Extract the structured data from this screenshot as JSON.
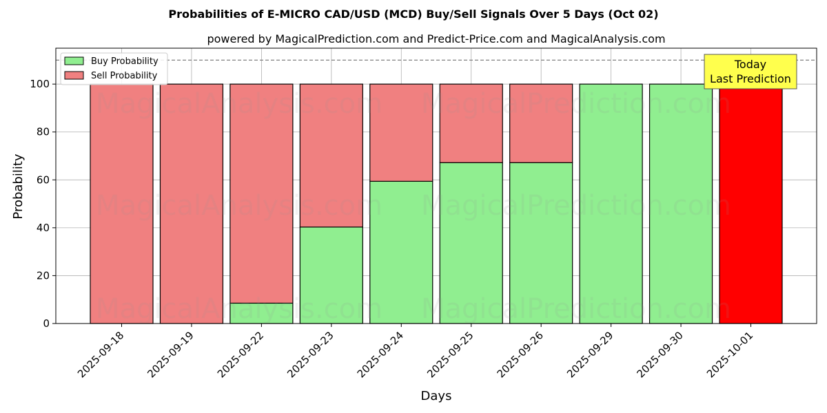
{
  "chart_data": {
    "type": "bar",
    "stacked": true,
    "title": "Probabilities of E-MICRO CAD/USD (MCD) Buy/Sell Signals Over 5 Days (Oct 02)",
    "subtitle": "powered by MagicalPrediction.com and Predict-Price.com and MagicalAnalysis.com",
    "xlabel": "Days",
    "ylabel": "Probability",
    "ylim": [
      0,
      115
    ],
    "yticks": [
      0,
      20,
      40,
      60,
      80,
      100
    ],
    "grid": true,
    "legend_position": "top-left",
    "threshold_line": 110,
    "categories": [
      "2025-09-18",
      "2025-09-19",
      "2025-09-22",
      "2025-09-23",
      "2025-09-24",
      "2025-09-25",
      "2025-09-26",
      "2025-09-29",
      "2025-09-30",
      "2025-10-01"
    ],
    "series": [
      {
        "name": "Buy Probability",
        "color": "#90ee90",
        "values": [
          0,
          0,
          8.5,
          40.3,
          59.4,
          67.2,
          67.2,
          100,
          100,
          0
        ]
      },
      {
        "name": "Sell Probability",
        "color": "#f08080",
        "values": [
          100,
          100,
          91.5,
          59.7,
          40.6,
          32.8,
          32.8,
          0,
          0,
          100
        ]
      }
    ],
    "highlight": {
      "category": "2025-10-01",
      "color": "#ff0000"
    },
    "annotation": {
      "lines": [
        "Today",
        "Last Prediction"
      ],
      "background": "#ffff4d"
    },
    "watermarks": [
      "MagicalAnalysis.com",
      "MagicalPrediction.com"
    ]
  }
}
